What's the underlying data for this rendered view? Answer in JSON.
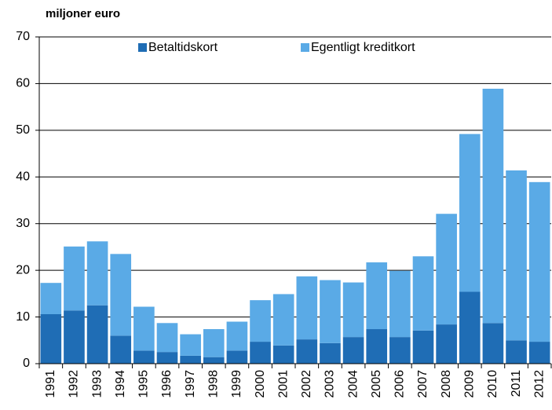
{
  "chart_data": {
    "type": "stacked_bar",
    "y_label": "miljoner euro",
    "categories": [
      "1991",
      "1992",
      "1993",
      "1994",
      "1995",
      "1996",
      "1997",
      "1998",
      "1999",
      "2000",
      "2001",
      "2002",
      "2003",
      "2004",
      "2005",
      "2006",
      "2007",
      "2008",
      "2009",
      "2010",
      "2011",
      "2012"
    ],
    "series": [
      {
        "name": "Betaltidskort",
        "color": "#1f6db5",
        "values": [
          10.6,
          11.4,
          12.5,
          6.0,
          2.8,
          2.5,
          1.7,
          1.4,
          2.8,
          4.7,
          3.9,
          5.2,
          4.4,
          5.7,
          7.4,
          5.7,
          7.1,
          8.4,
          15.4,
          8.7,
          5.0,
          4.7
        ]
      },
      {
        "name": "Egentligt kreditkort",
        "color": "#5aaae6",
        "values": [
          6.7,
          13.7,
          13.7,
          17.5,
          9.4,
          6.2,
          4.6,
          6.0,
          6.2,
          8.9,
          11.0,
          13.5,
          13.5,
          11.7,
          14.3,
          14.2,
          15.9,
          23.7,
          33.8,
          50.2,
          36.4,
          34.2
        ]
      }
    ],
    "ylim": [
      0,
      70
    ],
    "yticks": [
      0,
      10,
      20,
      30,
      40,
      50,
      60,
      70
    ],
    "grid": true,
    "legend": "top"
  }
}
